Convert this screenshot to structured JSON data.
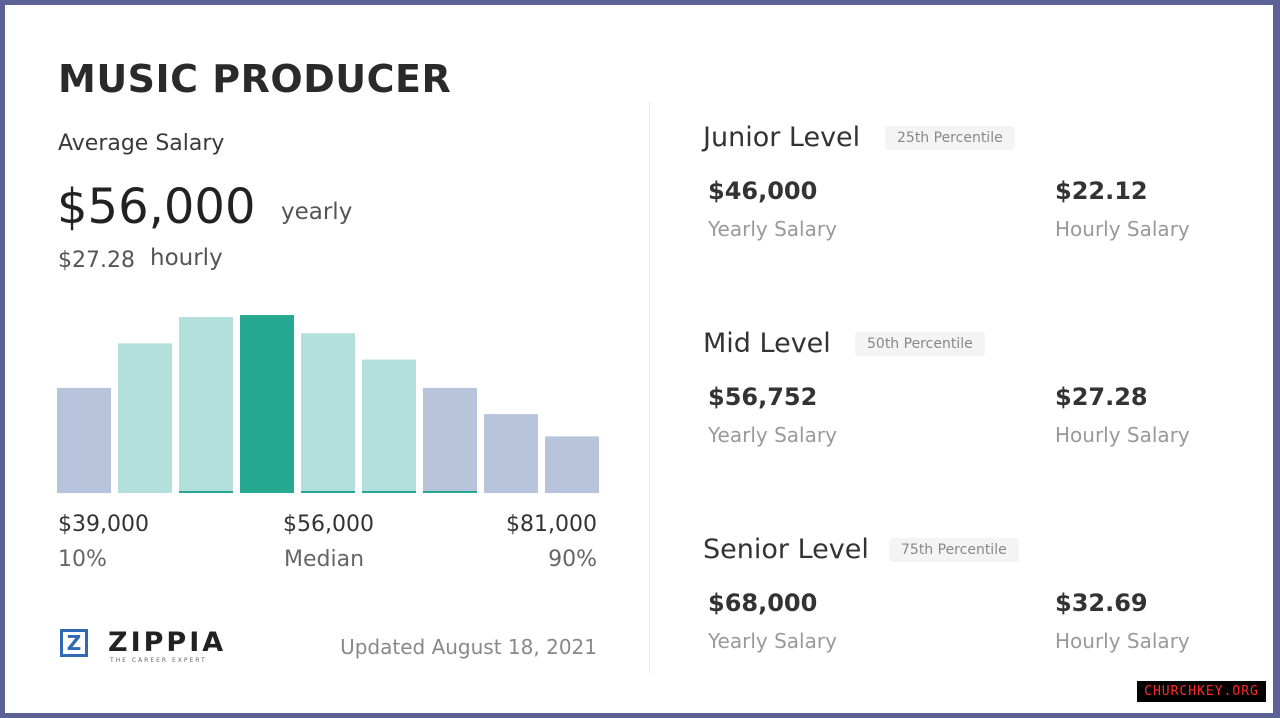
{
  "title": "MUSIC PRODUCER",
  "average": {
    "label": "Average Salary",
    "yearly": "$56,000",
    "yearly_unit": "yearly",
    "hourly": "$27.28",
    "hourly_unit": "hourly"
  },
  "chart_data": {
    "type": "bar",
    "values": [
      52,
      74,
      87,
      88,
      79,
      66,
      52,
      39,
      28
    ],
    "ylim": [
      0,
      90
    ],
    "highlight_index": 3,
    "colors": {
      "outer": "#b8c3dc",
      "inner": "#b3e0dc",
      "median": "#26a892",
      "baseline": "#26a892"
    },
    "band": [
      "outer",
      "inner",
      "inner",
      "median",
      "inner",
      "inner",
      "outer",
      "outer",
      "outer"
    ],
    "percentiles": [
      {
        "value": "$39,000",
        "label": "10%"
      },
      {
        "value": "$56,000",
        "label": "Median"
      },
      {
        "value": "$81,000",
        "label": "90%"
      }
    ]
  },
  "logo": {
    "mark": "Z",
    "name": "ZIPPIA",
    "tagline": "THE CAREER EXPERT"
  },
  "updated": "Updated August 18, 2021",
  "levels": [
    {
      "name": "Junior Level",
      "badge": "25th Percentile",
      "yearly": "$46,000",
      "yearly_caption": "Yearly Salary",
      "hourly": "$22.12",
      "hourly_caption": "Hourly Salary"
    },
    {
      "name": "Mid Level",
      "badge": "50th Percentile",
      "yearly": "$56,752",
      "yearly_caption": "Yearly Salary",
      "hourly": "$27.28",
      "hourly_caption": "Hourly Salary"
    },
    {
      "name": "Senior Level",
      "badge": "75th Percentile",
      "yearly": "$68,000",
      "yearly_caption": "Yearly Salary",
      "hourly": "$32.69",
      "hourly_caption": "Hourly Salary"
    }
  ],
  "watermark": "CHURCHKEY.ORG"
}
